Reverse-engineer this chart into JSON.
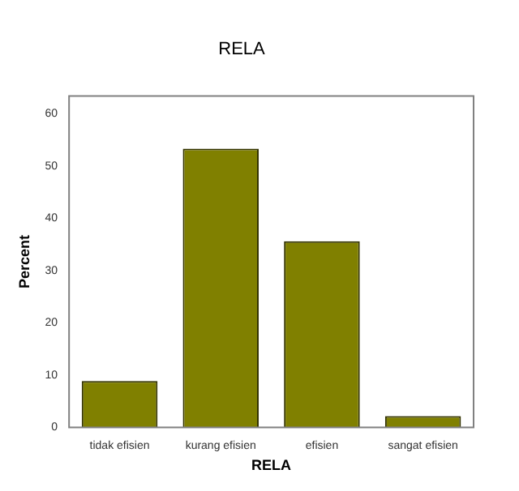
{
  "chart_data": {
    "type": "bar",
    "title": "RELA",
    "xlabel": "RELA",
    "ylabel": "Percent",
    "categories": [
      "tidak efisien",
      "kurang efisien",
      "efisien",
      "sangat efisien"
    ],
    "values": [
      8.9,
      53.3,
      35.6,
      2.2
    ],
    "color": "#808000",
    "ylim": [
      0,
      63.4
    ],
    "yticks": [
      0,
      10,
      20,
      30,
      40,
      50,
      60
    ],
    "grid": false,
    "legend": false
  }
}
